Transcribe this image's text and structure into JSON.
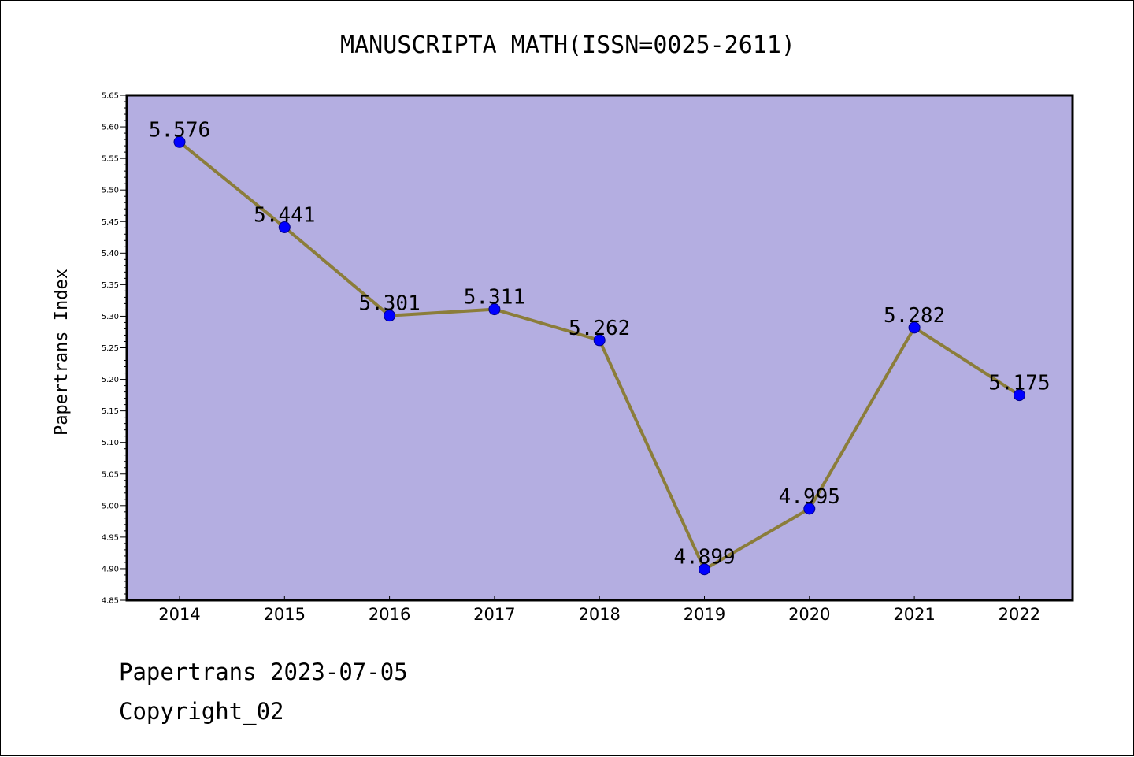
{
  "chart_data": {
    "type": "line",
    "title": "MANUSCRIPTA MATH(ISSN=0025-2611)",
    "xlabel": "",
    "ylabel": "Papertrans Index",
    "categories": [
      "2014",
      "2015",
      "2016",
      "2017",
      "2018",
      "2019",
      "2020",
      "2021",
      "2022"
    ],
    "values": [
      5.576,
      5.441,
      5.301,
      5.311,
      5.262,
      4.899,
      4.995,
      5.282,
      5.175
    ],
    "value_labels": [
      "5.576",
      "5.441",
      "5.301",
      "5.311",
      "5.262",
      "4.899",
      "4.995",
      "5.282",
      "5.175"
    ],
    "ylim": [
      4.85,
      5.65
    ],
    "yticks": [
      "4.85",
      "4.90",
      "4.95",
      "5.00",
      "5.05",
      "5.10",
      "5.15",
      "5.20",
      "5.25",
      "5.30",
      "5.35",
      "5.40",
      "5.45",
      "5.50",
      "5.55",
      "5.60",
      "5.65"
    ],
    "grid": false,
    "colors": {
      "plot_background": "#b4aee1",
      "line": "#8b7d3a",
      "marker": "#0000ff"
    }
  },
  "footer": {
    "source": "Papertrans 2023-07-05",
    "copyright": "Copyright_02"
  }
}
